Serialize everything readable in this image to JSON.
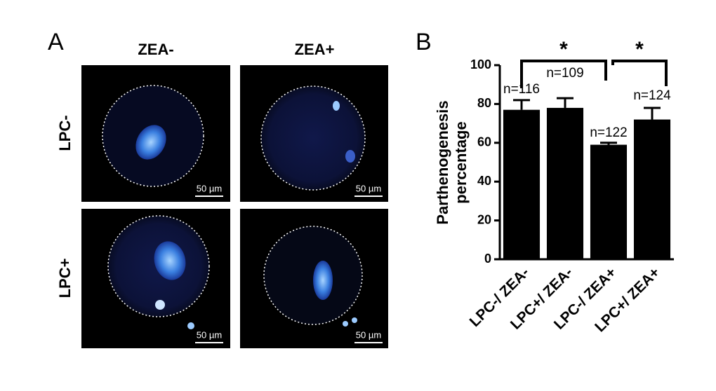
{
  "panel_a": {
    "label": "A",
    "columns": [
      "ZEA-",
      "ZEA+"
    ],
    "rows": [
      "LPC-",
      "LPC+"
    ],
    "scale_bars": [
      "50 µm",
      "50 µm",
      "50 µm",
      "50 µm"
    ]
  },
  "chart_data": {
    "type": "bar",
    "panel_label": "B",
    "ylabel": [
      "Parthenogenesis",
      "percentage"
    ],
    "categories": [
      "LPC-/ ZEA-",
      "LPC+/ ZEA-",
      "LPC-/ ZEA+",
      "LPC+/ ZEA+"
    ],
    "values": [
      77,
      78,
      59,
      72
    ],
    "errors": [
      5,
      5,
      1,
      6
    ],
    "color": "#000000",
    "annotations": [
      "n=116",
      "n=109",
      "n=122",
      "n=124"
    ],
    "significance": [
      "*",
      "*"
    ],
    "ylim": [
      0,
      100
    ],
    "yticks": [
      0,
      20,
      40,
      60,
      80,
      100
    ]
  }
}
